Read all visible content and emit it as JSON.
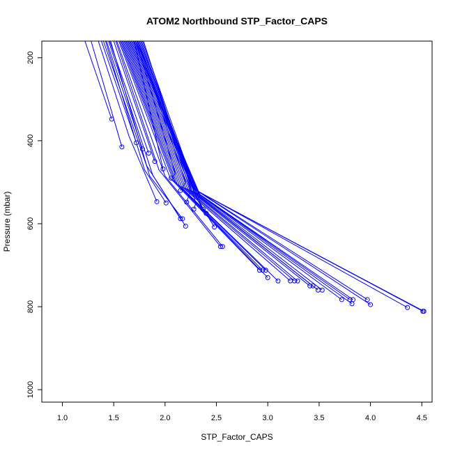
{
  "chart_data": {
    "type": "line",
    "title": "ATOM2 Northbound STP_Factor_CAPS",
    "xlabel": "STP_Factor_CAPS",
    "ylabel": "Pressure (mbar)",
    "xlim": [
      0.8,
      4.6
    ],
    "ylim": [
      1030,
      160
    ],
    "y_reversed": true,
    "grid": false,
    "legend": "none",
    "line_color": "#0000ff",
    "x_ticks": [
      {
        "value": 1.0,
        "label": "1.0"
      },
      {
        "value": 1.5,
        "label": "1.5"
      },
      {
        "value": 2.0,
        "label": "2.0"
      },
      {
        "value": 2.5,
        "label": "2.5"
      },
      {
        "value": 3.0,
        "label": "3.0"
      },
      {
        "value": 3.5,
        "label": "3.5"
      },
      {
        "value": 4.0,
        "label": "4.0"
      },
      {
        "value": 4.5,
        "label": "4.5"
      }
    ],
    "y_ticks": [
      {
        "value": 200,
        "label": "200"
      },
      {
        "value": 400,
        "label": "400"
      },
      {
        "value": 600,
        "label": "600"
      },
      {
        "value": 800,
        "label": "800"
      },
      {
        "value": 1000,
        "label": "1000"
      }
    ],
    "series": [
      {
        "x": [
          1.22,
          1.48
        ],
        "y": [
          160,
          348
        ],
        "marker": {
          "x": 1.48,
          "y": 348
        }
      },
      {
        "x": [
          1.28,
          1.58
        ],
        "y": [
          160,
          415
        ],
        "marker": {
          "x": 1.58,
          "y": 415
        }
      },
      {
        "x": [
          1.35,
          1.65,
          1.92
        ],
        "y": [
          160,
          390,
          547
        ],
        "marker": {
          "x": 1.92,
          "y": 547
        }
      },
      {
        "x": [
          1.4,
          1.82,
          2.2
        ],
        "y": [
          160,
          460,
          606
        ],
        "marker": {
          "x": 2.2,
          "y": 606
        }
      },
      {
        "x": [
          1.42,
          1.8,
          2.01
        ],
        "y": [
          160,
          470,
          550
        ],
        "marker": {
          "x": 2.01,
          "y": 550
        }
      },
      {
        "x": [
          1.45,
          1.88,
          2.15
        ],
        "y": [
          160,
          483,
          588
        ],
        "marker": {
          "x": 2.15,
          "y": 588
        }
      },
      {
        "x": [
          1.47,
          1.85,
          2.17
        ],
        "y": [
          160,
          485,
          588
        ],
        "marker": {
          "x": 2.17,
          "y": 588
        }
      },
      {
        "x": [
          1.38,
          1.72
        ],
        "y": [
          160,
          405
        ],
        "marker": {
          "x": 1.72,
          "y": 405
        }
      },
      {
        "x": [
          1.43,
          1.78
        ],
        "y": [
          160,
          420
        ],
        "marker": {
          "x": 1.78,
          "y": 420
        }
      },
      {
        "x": [
          1.46,
          1.84
        ],
        "y": [
          160,
          430
        ],
        "marker": {
          "x": 1.84,
          "y": 430
        }
      },
      {
        "x": [
          1.5,
          1.9
        ],
        "y": [
          160,
          450
        ],
        "marker": {
          "x": 1.9,
          "y": 450
        }
      },
      {
        "x": [
          1.52,
          1.94,
          2.54
        ],
        "y": [
          160,
          470,
          655
        ],
        "marker": {
          "x": 2.54,
          "y": 655
        }
      },
      {
        "x": [
          1.53,
          2.0,
          2.56
        ],
        "y": [
          160,
          485,
          655
        ],
        "marker": {
          "x": 2.56,
          "y": 655
        }
      },
      {
        "x": [
          1.55,
          2.05,
          2.92
        ],
        "y": [
          160,
          490,
          712
        ],
        "marker": {
          "x": 2.92,
          "y": 712
        }
      },
      {
        "x": [
          1.56,
          2.08,
          2.95
        ],
        "y": [
          160,
          495,
          712
        ],
        "marker": {
          "x": 2.95,
          "y": 712
        }
      },
      {
        "x": [
          1.57,
          2.1,
          2.98
        ],
        "y": [
          160,
          500,
          712
        ],
        "marker": {
          "x": 2.98,
          "y": 712
        }
      },
      {
        "x": [
          1.58,
          2.12,
          3.0
        ],
        "y": [
          160,
          505,
          730
        ],
        "marker": {
          "x": 3.0,
          "y": 730
        }
      },
      {
        "x": [
          1.59,
          2.14,
          3.1
        ],
        "y": [
          160,
          508,
          738
        ],
        "marker": {
          "x": 3.1,
          "y": 738
        }
      },
      {
        "x": [
          1.6,
          2.16,
          3.22
        ],
        "y": [
          160,
          510,
          738
        ],
        "marker": {
          "x": 3.22,
          "y": 738
        }
      },
      {
        "x": [
          1.61,
          2.18,
          3.26
        ],
        "y": [
          160,
          512,
          738
        ],
        "marker": {
          "x": 3.26,
          "y": 738
        }
      },
      {
        "x": [
          1.62,
          2.2,
          3.29
        ],
        "y": [
          160,
          514,
          738
        ],
        "marker": {
          "x": 3.29,
          "y": 738
        }
      },
      {
        "x": [
          1.63,
          2.22,
          3.41
        ],
        "y": [
          160,
          516,
          750
        ],
        "marker": {
          "x": 3.41,
          "y": 750
        }
      },
      {
        "x": [
          1.64,
          2.24,
          3.44
        ],
        "y": [
          160,
          518,
          750
        ],
        "marker": {
          "x": 3.44,
          "y": 750
        }
      },
      {
        "x": [
          1.65,
          2.26,
          3.49
        ],
        "y": [
          160,
          520,
          760
        ],
        "marker": {
          "x": 3.49,
          "y": 760
        }
      },
      {
        "x": [
          1.66,
          2.28,
          3.53
        ],
        "y": [
          160,
          522,
          760
        ],
        "marker": {
          "x": 3.53,
          "y": 760
        }
      },
      {
        "x": [
          1.67,
          2.3,
          3.72
        ],
        "y": [
          160,
          524,
          783
        ],
        "marker": {
          "x": 3.72,
          "y": 783
        }
      },
      {
        "x": [
          1.68,
          2.32,
          3.8
        ],
        "y": [
          160,
          526,
          783
        ],
        "marker": {
          "x": 3.8,
          "y": 783
        }
      },
      {
        "x": [
          1.69,
          2.33,
          3.83
        ],
        "y": [
          160,
          528,
          783
        ],
        "marker": {
          "x": 3.83,
          "y": 783
        }
      },
      {
        "x": [
          1.7,
          2.34,
          3.82
        ],
        "y": [
          160,
          530,
          793
        ],
        "marker": {
          "x": 3.82,
          "y": 793
        }
      },
      {
        "x": [
          1.71,
          2.26,
          3.97
        ],
        "y": [
          160,
          512,
          783
        ],
        "marker": {
          "x": 3.97,
          "y": 783
        }
      },
      {
        "x": [
          1.72,
          2.27,
          4.0
        ],
        "y": [
          160,
          514,
          795
        ],
        "marker": {
          "x": 4.0,
          "y": 795
        }
      },
      {
        "x": [
          1.73,
          2.28,
          4.36
        ],
        "y": [
          160,
          516,
          802
        ],
        "marker": {
          "x": 4.36,
          "y": 802
        }
      },
      {
        "x": [
          1.74,
          2.29,
          4.51
        ],
        "y": [
          160,
          518,
          811
        ],
        "marker": {
          "x": 4.51,
          "y": 811
        }
      },
      {
        "x": [
          1.75,
          2.3,
          4.52
        ],
        "y": [
          160,
          520,
          811
        ],
        "marker": {
          "x": 4.52,
          "y": 811
        }
      },
      {
        "x": [
          1.76,
          2.31,
          2.48
        ],
        "y": [
          160,
          540,
          608
        ],
        "marker": {
          "x": 2.48,
          "y": 608
        }
      },
      {
        "x": [
          1.77,
          2.32,
          2.4
        ],
        "y": [
          160,
          545,
          575
        ],
        "marker": {
          "x": 2.4,
          "y": 575
        }
      },
      {
        "x": [
          1.78,
          2.34,
          2.37
        ],
        "y": [
          160,
          548,
          565
        ],
        "marker": {
          "x": 2.37,
          "y": 565
        }
      },
      {
        "x": [
          1.79,
          2.3,
          2.28
        ],
        "y": [
          160,
          550,
          565
        ],
        "marker": {
          "x": 2.28,
          "y": 565
        }
      },
      {
        "x": [
          1.74,
          2.25,
          2.21
        ],
        "y": [
          160,
          520,
          548
        ],
        "marker": {
          "x": 2.21,
          "y": 548
        }
      },
      {
        "x": [
          1.73,
          2.2,
          2.15
        ],
        "y": [
          160,
          500,
          520
        ],
        "marker": {
          "x": 2.15,
          "y": 520
        }
      },
      {
        "x": [
          1.72,
          2.1,
          2.06
        ],
        "y": [
          160,
          480,
          490
        ],
        "marker": {
          "x": 2.06,
          "y": 490
        }
      },
      {
        "x": [
          1.7,
          1.98
        ],
        "y": [
          160,
          468
        ],
        "marker": {
          "x": 1.98,
          "y": 468
        }
      }
    ]
  }
}
